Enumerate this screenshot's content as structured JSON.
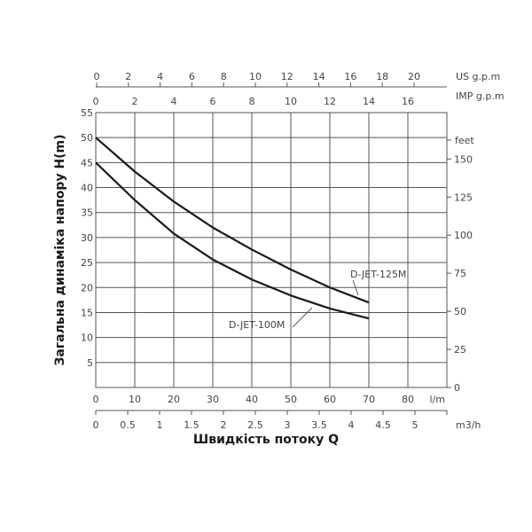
{
  "chart_data": {
    "type": "line",
    "xlabel": "Швидкість потоку Q",
    "ylabel": "Загальна динаміка напору H(m)",
    "x_unit": "l/m",
    "xlim": [
      0,
      90
    ],
    "ylim": [
      0,
      55
    ],
    "grid": true,
    "x_ticks": [
      0,
      10,
      20,
      30,
      40,
      50,
      60,
      70,
      80
    ],
    "y_ticks": [
      0,
      5,
      10,
      15,
      20,
      25,
      30,
      35,
      40,
      45,
      50,
      55
    ],
    "secondary_axes": {
      "us_gpm": {
        "label": "US g.p.m",
        "ticks": [
          0,
          2,
          4,
          6,
          8,
          10,
          12,
          14,
          16,
          18,
          20
        ]
      },
      "imp_gpm": {
        "label": "IMP g.p.m",
        "ticks": [
          0,
          2,
          4,
          6,
          8,
          10,
          12,
          14,
          16
        ]
      },
      "m3h": {
        "label": "m3/h",
        "ticks": [
          "0",
          "0.5",
          "1",
          "1.5",
          "2",
          "2.5",
          "3",
          "3.5",
          "4",
          "4.5",
          "5"
        ]
      },
      "feet": {
        "label": "feet",
        "ticks": [
          0,
          25,
          50,
          75,
          100,
          125,
          150
        ]
      }
    },
    "series": [
      {
        "name": "D-JET-125M",
        "x": [
          0,
          10,
          20,
          30,
          40,
          50,
          60,
          70
        ],
        "y": [
          50,
          43.2,
          37.2,
          32,
          27.6,
          23.6,
          20,
          17
        ]
      },
      {
        "name": "D-JET-100M",
        "x": [
          0,
          10,
          20,
          30,
          40,
          50,
          60,
          70
        ],
        "y": [
          45,
          37.5,
          30.8,
          25.6,
          21.6,
          18.4,
          15.8,
          13.8
        ]
      }
    ]
  }
}
